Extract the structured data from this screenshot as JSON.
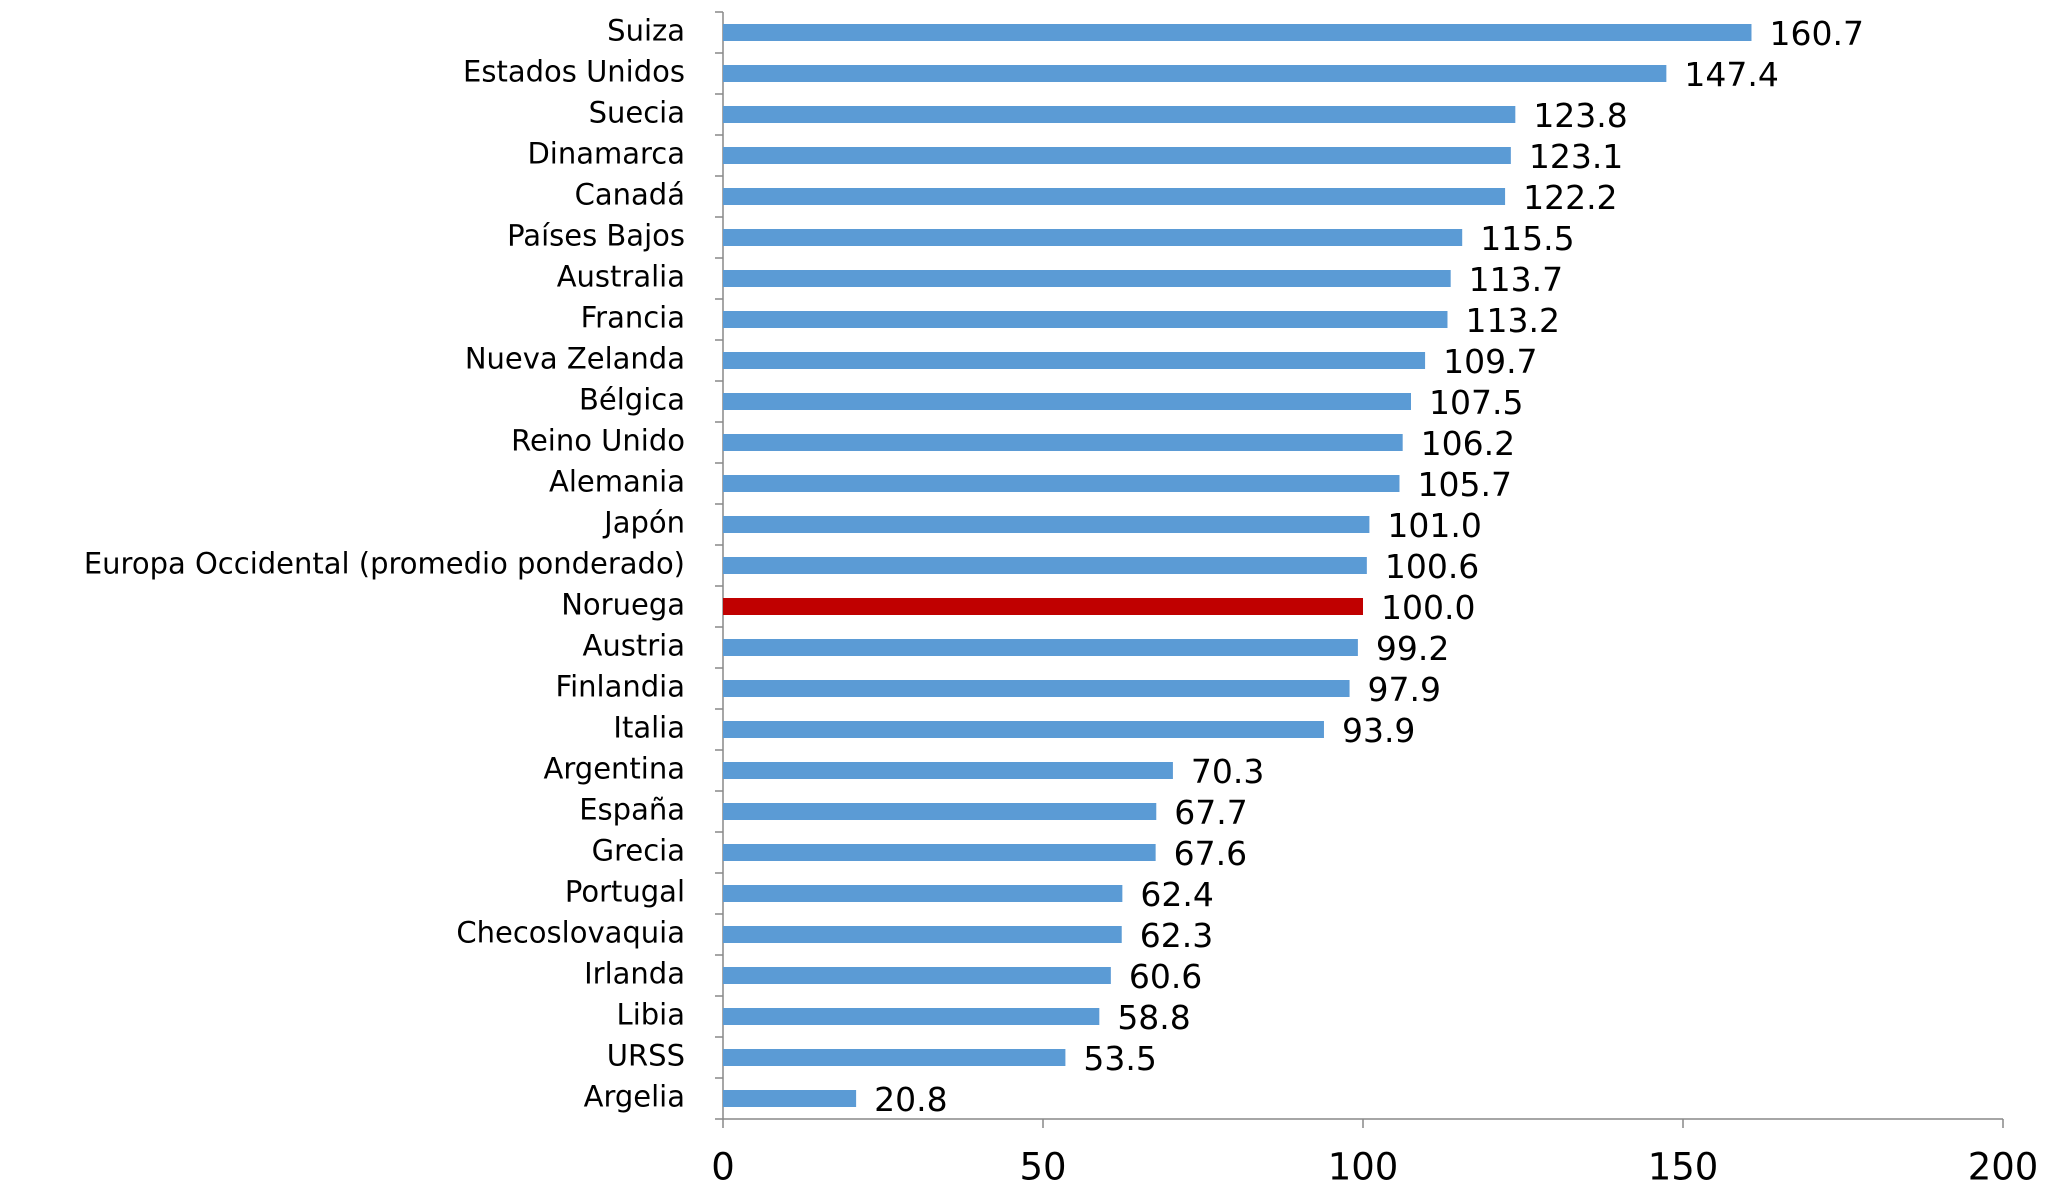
{
  "chart_data": {
    "type": "hbar",
    "categories": [
      "Suiza",
      "Estados Unidos",
      "Suecia",
      "Dinamarca",
      "Canadá",
      "Países Bajos",
      "Australia",
      "Francia",
      "Nueva Zelanda",
      "Bélgica",
      "Reino Unido",
      "Alemania",
      "Japón",
      "Europa Occidental (promedio ponderado)",
      "Noruega",
      "Austria",
      "Finlandia",
      "Italia",
      "Argentina",
      "España",
      "Grecia",
      "Portugal",
      "Checoslovaquia",
      "Irlanda",
      "Libia",
      "URSS",
      "Argelia"
    ],
    "values": [
      160.7,
      147.4,
      123.8,
      123.1,
      122.2,
      115.5,
      113.7,
      113.2,
      109.7,
      107.5,
      106.2,
      105.7,
      101.0,
      100.6,
      100.0,
      99.2,
      97.9,
      93.9,
      70.3,
      67.7,
      67.6,
      62.4,
      62.3,
      60.6,
      58.8,
      53.5,
      20.8
    ],
    "value_labels": [
      "160.7",
      "147.4",
      "123.8",
      "123.1",
      "122.2",
      "115.5",
      "113.7",
      "113.2",
      "109.7",
      "107.5",
      "106.2",
      "105.7",
      "101.0",
      "100.6",
      "100.0",
      "99.2",
      "97.9",
      "93.9",
      "70.3",
      "67.7",
      "67.6",
      "62.4",
      "62.3",
      "60.6",
      "58.8",
      "53.5",
      "20.8"
    ],
    "colors": [
      "#5b9bd5",
      "#5b9bd5",
      "#5b9bd5",
      "#5b9bd5",
      "#5b9bd5",
      "#5b9bd5",
      "#5b9bd5",
      "#5b9bd5",
      "#5b9bd5",
      "#5b9bd5",
      "#5b9bd5",
      "#5b9bd5",
      "#5b9bd5",
      "#5b9bd5",
      "#c00000",
      "#5b9bd5",
      "#5b9bd5",
      "#5b9bd5",
      "#5b9bd5",
      "#5b9bd5",
      "#5b9bd5",
      "#5b9bd5",
      "#5b9bd5",
      "#5b9bd5",
      "#5b9bd5",
      "#5b9bd5",
      "#5b9bd5"
    ],
    "xlim": [
      0,
      200
    ],
    "xticks": [
      0,
      50,
      100,
      150,
      200
    ],
    "grid": false
  }
}
